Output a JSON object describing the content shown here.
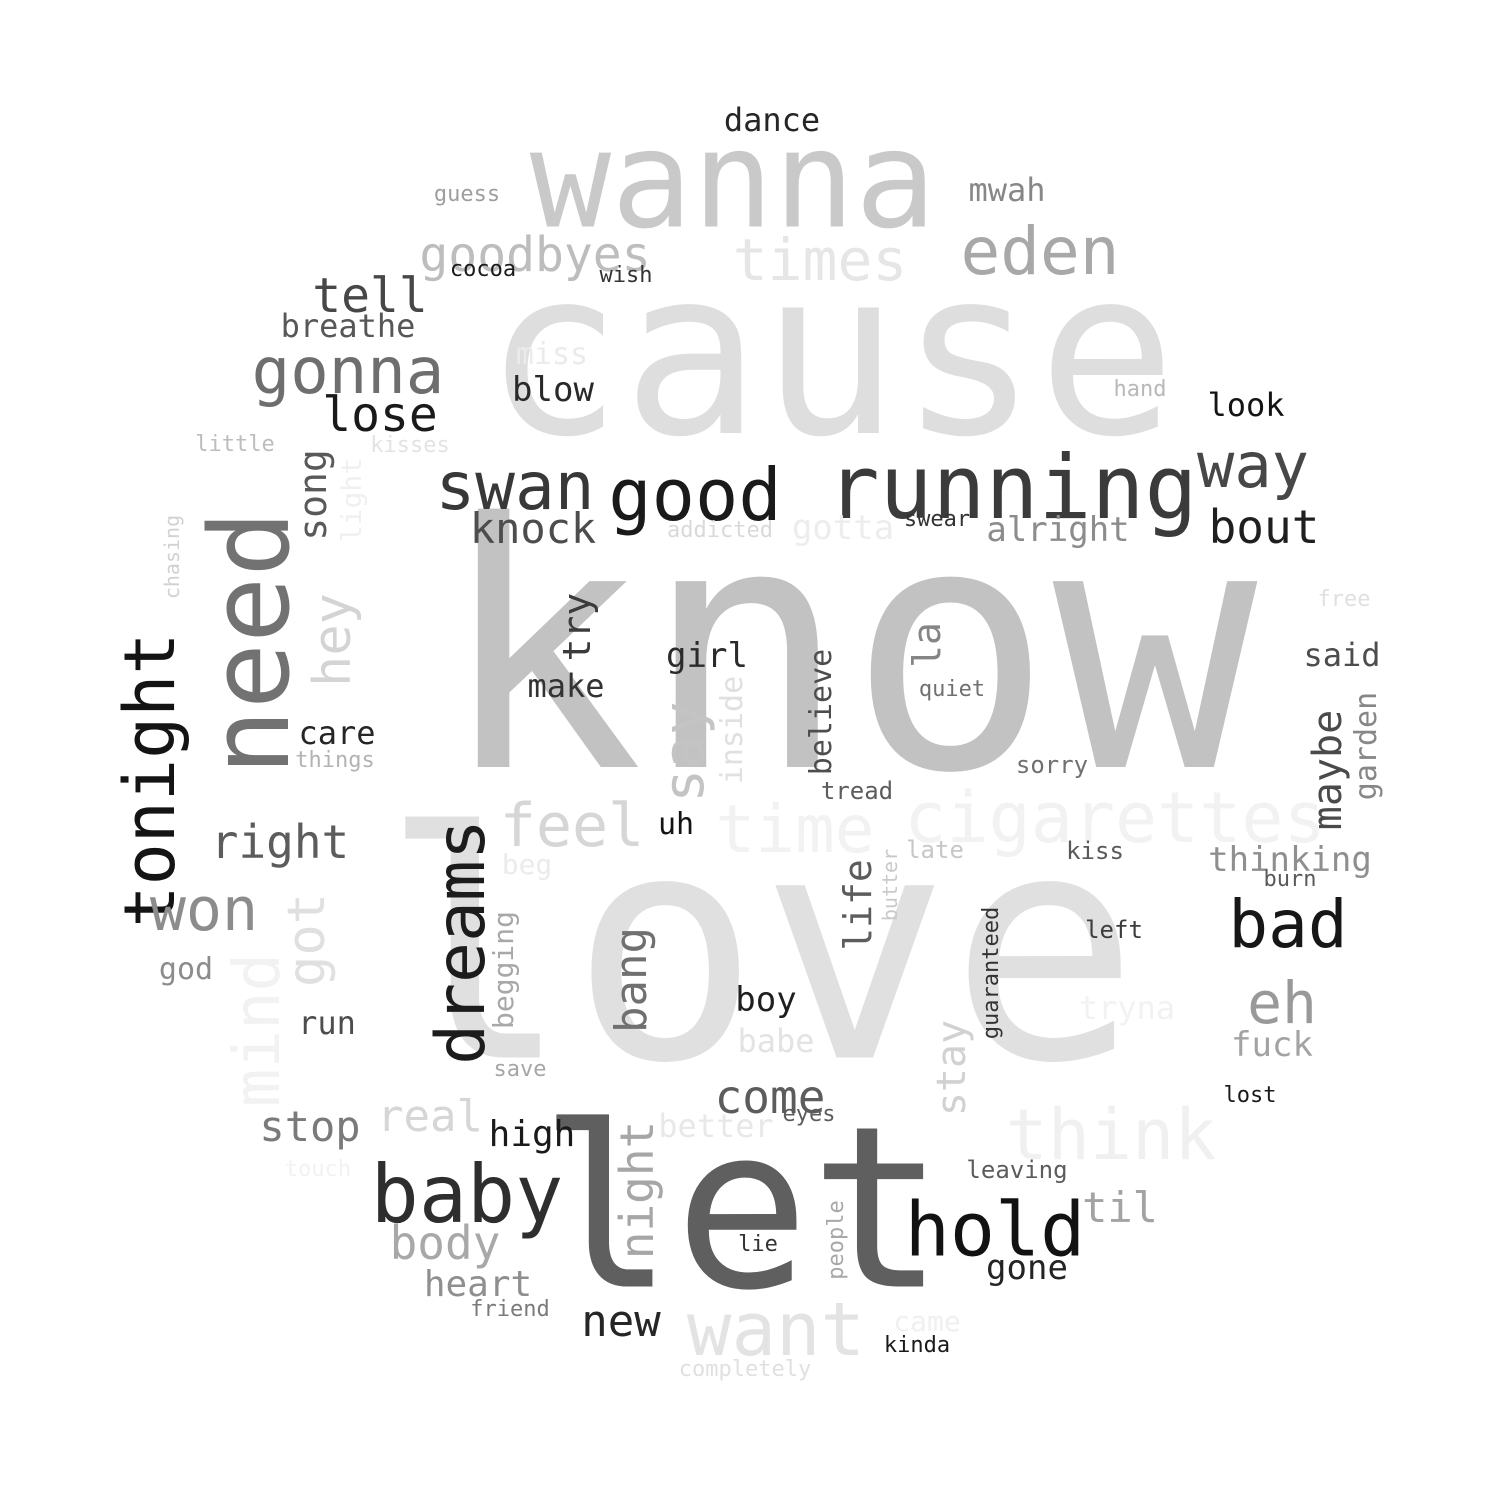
{
  "words": [
    {
      "text": "know",
      "color": "#c2c2c2",
      "vertical": false
    },
    {
      "text": "love",
      "color": "#e0e0e0",
      "vertical": false
    },
    {
      "text": "cause",
      "color": "#dedede",
      "vertical": false
    },
    {
      "text": "let",
      "color": "#5f5f5f",
      "vertical": false
    },
    {
      "text": "wanna",
      "color": "#c9c9c9",
      "vertical": false
    },
    {
      "text": "need",
      "color": "#727272",
      "vertical": true
    },
    {
      "text": "running",
      "color": "#3b3b3b",
      "vertical": false
    },
    {
      "text": "cigarettes",
      "color": "#f2f2f2",
      "vertical": false
    },
    {
      "text": "time",
      "color": "#f2f2f2",
      "vertical": false
    },
    {
      "text": "tonight",
      "color": "#141414",
      "vertical": true
    },
    {
      "text": "baby",
      "color": "#2e2e2e",
      "vertical": false
    },
    {
      "text": "hold",
      "color": "#121212",
      "vertical": false
    },
    {
      "text": "dreams",
      "color": "#1c1c1c",
      "vertical": true
    },
    {
      "text": "good",
      "color": "#1a1a1a",
      "vertical": false
    },
    {
      "text": "swan",
      "color": "#383838",
      "vertical": false
    },
    {
      "text": "think",
      "color": "#f0f0f0",
      "vertical": false
    },
    {
      "text": "want",
      "color": "#e3e3e3",
      "vertical": false
    },
    {
      "text": "eden",
      "color": "#a8a8a8",
      "vertical": false
    },
    {
      "text": "gonna",
      "color": "#6e6e6e",
      "vertical": false
    },
    {
      "text": "way",
      "color": "#474747",
      "vertical": false
    },
    {
      "text": "bad",
      "color": "#171717",
      "vertical": false
    },
    {
      "text": "won",
      "color": "#8c8c8c",
      "vertical": false
    },
    {
      "text": "times",
      "color": "#e6e6e6",
      "vertical": false
    },
    {
      "text": "feel",
      "color": "#d6d6d6",
      "vertical": false
    },
    {
      "text": "say",
      "color": "#c4c4c4",
      "vertical": true
    },
    {
      "text": "eh",
      "color": "#999999",
      "vertical": false
    },
    {
      "text": "goodbyes",
      "color": "#bdbdbd",
      "vertical": false
    },
    {
      "text": "hey",
      "color": "#d4d4d4",
      "vertical": true
    },
    {
      "text": "got",
      "color": "#e0e0e0",
      "vertical": true
    },
    {
      "text": "right",
      "color": "#5c5c5c",
      "vertical": false
    },
    {
      "text": "bout",
      "color": "#1f1f1f",
      "vertical": false
    },
    {
      "text": "come",
      "color": "#5c5c5c",
      "vertical": false
    },
    {
      "text": "tell",
      "color": "#474747",
      "vertical": false
    },
    {
      "text": "lose",
      "color": "#1a1a1a",
      "vertical": false
    },
    {
      "text": "knock",
      "color": "#4d4d4d",
      "vertical": false
    },
    {
      "text": "night",
      "color": "#a6a6a6",
      "vertical": true
    },
    {
      "text": "new",
      "color": "#262626",
      "vertical": false
    },
    {
      "text": "body",
      "color": "#a8a8a8",
      "vertical": false
    },
    {
      "text": "real",
      "color": "#d6d6d6",
      "vertical": false
    },
    {
      "text": "til",
      "color": "#a3a3a3",
      "vertical": false
    },
    {
      "text": "stop",
      "color": "#7a7a7a",
      "vertical": false
    },
    {
      "text": "song",
      "color": "#595959",
      "vertical": true
    },
    {
      "text": "bang",
      "color": "#707070",
      "vertical": true
    },
    {
      "text": "stay",
      "color": "#d1d1d1",
      "vertical": true
    },
    {
      "text": "maybe",
      "color": "#4a4a4a",
      "vertical": true
    },
    {
      "text": "high",
      "color": "#1a1a1a",
      "vertical": false
    },
    {
      "text": "heart",
      "color": "#8f8f8f",
      "vertical": false
    },
    {
      "text": "life",
      "color": "#5c5c5c",
      "vertical": true
    },
    {
      "text": "alright",
      "color": "#8c8c8c",
      "vertical": false
    },
    {
      "text": "thinking",
      "color": "#8f8f8f",
      "vertical": false
    },
    {
      "text": "gotta",
      "color": "#ededed",
      "vertical": false
    },
    {
      "text": "try",
      "color": "#3b3b3b",
      "vertical": true
    },
    {
      "text": "la",
      "color": "#858585",
      "vertical": true
    },
    {
      "text": "fuck",
      "color": "#a3a3a3",
      "vertical": false
    },
    {
      "text": "gone",
      "color": "#242424",
      "vertical": false
    },
    {
      "text": "boy",
      "color": "#1f1f1f",
      "vertical": false
    },
    {
      "text": "better",
      "color": "#e8e8e8",
      "vertical": false
    },
    {
      "text": "make",
      "color": "#333333",
      "vertical": false
    },
    {
      "text": "girl",
      "color": "#2b2b2b",
      "vertical": false
    },
    {
      "text": "breathe",
      "color": "#575757",
      "vertical": false
    },
    {
      "text": "blow",
      "color": "#292929",
      "vertical": false
    },
    {
      "text": "care",
      "color": "#262626",
      "vertical": false
    },
    {
      "text": "run",
      "color": "#4d4d4d",
      "vertical": false
    },
    {
      "text": "babe",
      "color": "#e3e3e3",
      "vertical": false
    },
    {
      "text": "tryna",
      "color": "#f2f2f2",
      "vertical": false
    },
    {
      "text": "dance",
      "color": "#262626",
      "vertical": false
    },
    {
      "text": "mwah",
      "color": "#878787",
      "vertical": false
    },
    {
      "text": "said",
      "color": "#4d4d4d",
      "vertical": false
    },
    {
      "text": "look",
      "color": "#141414",
      "vertical": false
    },
    {
      "text": "garden",
      "color": "#878787",
      "vertical": true
    },
    {
      "text": "believe",
      "color": "#4d4d4d",
      "vertical": true
    },
    {
      "text": "inside",
      "color": "#e0e0e0",
      "vertical": true
    },
    {
      "text": "light",
      "color": "#f0f0f0",
      "vertical": true
    },
    {
      "text": "begging",
      "color": "#a8a8a8",
      "vertical": true
    },
    {
      "text": "uh",
      "color": "#141414",
      "vertical": false
    },
    {
      "text": "god",
      "color": "#8c8c8c",
      "vertical": false
    },
    {
      "text": "miss",
      "color": "#ebebeb",
      "vertical": false
    },
    {
      "text": "beg",
      "color": "#ebebeb",
      "vertical": false
    },
    {
      "text": "came",
      "color": "#f0f0f0",
      "vertical": false
    },
    {
      "text": "tread",
      "color": "#5c5c5c",
      "vertical": false
    },
    {
      "text": "sorry",
      "color": "#707070",
      "vertical": false
    },
    {
      "text": "kiss",
      "color": "#595959",
      "vertical": false
    },
    {
      "text": "left",
      "color": "#3d3d3d",
      "vertical": false
    },
    {
      "text": "leaving",
      "color": "#5c5c5c",
      "vertical": false
    },
    {
      "text": "guaranteed",
      "color": "#333333",
      "vertical": true
    },
    {
      "text": "people",
      "color": "#a8a8a8",
      "vertical": true
    },
    {
      "text": "butter",
      "color": "#c9c9c9",
      "vertical": true
    },
    {
      "text": "chasing",
      "color": "#d1d1d1",
      "vertical": true
    },
    {
      "text": "quiet",
      "color": "#707070",
      "vertical": false
    },
    {
      "text": "late",
      "color": "#c7c7c7",
      "vertical": false
    },
    {
      "text": "burn",
      "color": "#595959",
      "vertical": false
    },
    {
      "text": "swear",
      "color": "#333333",
      "vertical": false
    },
    {
      "text": "addicted",
      "color": "#d9d9d9",
      "vertical": false
    },
    {
      "text": "guess",
      "color": "#9e9e9e",
      "vertical": false
    },
    {
      "text": "cocoa",
      "color": "#1a1a1a",
      "vertical": false
    },
    {
      "text": "wish",
      "color": "#333333",
      "vertical": false
    },
    {
      "text": "little",
      "color": "#bdbdbd",
      "vertical": false
    },
    {
      "text": "kisses",
      "color": "#e3e3e3",
      "vertical": false
    },
    {
      "text": "things",
      "color": "#b3b3b3",
      "vertical": false
    },
    {
      "text": "hand",
      "color": "#b8b8b8",
      "vertical": false
    },
    {
      "text": "free",
      "color": "#e0e0e0",
      "vertical": false
    },
    {
      "text": "lost",
      "color": "#1a1a1a",
      "vertical": false
    },
    {
      "text": "eyes",
      "color": "#5c5c5c",
      "vertical": false
    },
    {
      "text": "save",
      "color": "#a6a6a6",
      "vertical": false
    },
    {
      "text": "touch",
      "color": "#f2f2f2",
      "vertical": false
    },
    {
      "text": "friend",
      "color": "#7a7a7a",
      "vertical": false
    },
    {
      "text": "lie",
      "color": "#333333",
      "vertical": false
    },
    {
      "text": "kinda",
      "color": "#1a1a1a",
      "vertical": false
    },
    {
      "text": "completely",
      "color": "#e0e0e0",
      "vertical": false
    },
    {
      "text": "mind",
      "color": "#f2f2f2",
      "vertical": true
    }
  ]
}
